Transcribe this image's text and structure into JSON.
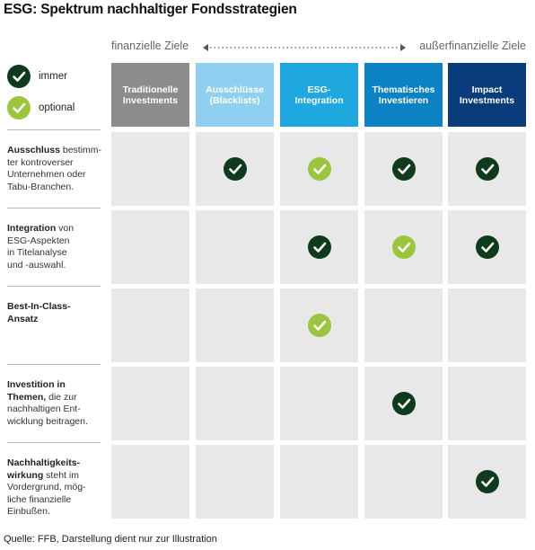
{
  "title": "ESG: Spektrum nachhaltiger Fondsstrategien",
  "axis": {
    "left_label": "finanzielle Ziele",
    "right_label": "außerfinanzielle Ziele"
  },
  "legend": [
    {
      "label": "immer",
      "type": "always"
    },
    {
      "label": "optional",
      "type": "optional"
    }
  ],
  "colors": {
    "always": "#0d3b1c",
    "optional": "#9bc53d",
    "col1": "#8c8c8c",
    "col2": "#8fd0f0",
    "col3": "#1fa7e0",
    "col4": "#0b82c4",
    "col5": "#0a3c7c",
    "cell": "#e8e8e8"
  },
  "columns": [
    {
      "line1": "Traditionelle",
      "line2": "Investments"
    },
    {
      "line1": "Ausschlüsse",
      "line2": "(Blacklists)"
    },
    {
      "line1": "ESG-",
      "line2": "Integration"
    },
    {
      "line1": "Thematisches",
      "line2": "Investieren"
    },
    {
      "line1": "Impact",
      "line2": "Investments"
    }
  ],
  "rows": [
    {
      "bold": "Ausschluss",
      "text": " bestimm-ter kontroverser Unternehmen oder Tabu-Branchen.",
      "lines": [
        [
          "Ausschluss",
          " bestimm-"
        ],
        [
          "",
          "ter kontroverser"
        ],
        [
          "",
          "Unternehmen oder"
        ],
        [
          "",
          "Tabu-Branchen."
        ]
      ],
      "marks": [
        "",
        "always",
        "optional",
        "always",
        "always"
      ]
    },
    {
      "lines": [
        [
          "Integration",
          " von"
        ],
        [
          "",
          "ESG-Aspekten"
        ],
        [
          "",
          "in Titelanalyse"
        ],
        [
          "",
          "und -auswahl."
        ]
      ],
      "marks": [
        "",
        "",
        "always",
        "optional",
        "always"
      ]
    },
    {
      "lines": [
        [
          "Best-In-Class-",
          ""
        ],
        [
          "Ansatz",
          ""
        ]
      ],
      "marks": [
        "",
        "",
        "optional",
        "",
        ""
      ]
    },
    {
      "lines": [
        [
          "Investition in",
          ""
        ],
        [
          "Themen,",
          " die zur"
        ],
        [
          "",
          "nachhaltigen Ent-"
        ],
        [
          "",
          "wicklung beitragen."
        ]
      ],
      "marks": [
        "",
        "",
        "",
        "always",
        ""
      ]
    },
    {
      "lines": [
        [
          "Nachhaltigkeits-",
          ""
        ],
        [
          "wirkung",
          " steht im"
        ],
        [
          "",
          "Vordergrund, mög-"
        ],
        [
          "",
          "liche finanzielle"
        ],
        [
          "",
          "Einbußen."
        ]
      ],
      "marks": [
        "",
        "",
        "",
        "",
        "always"
      ]
    }
  ],
  "source": "Quelle: FFB, Darstellung dient nur zur Illustration"
}
